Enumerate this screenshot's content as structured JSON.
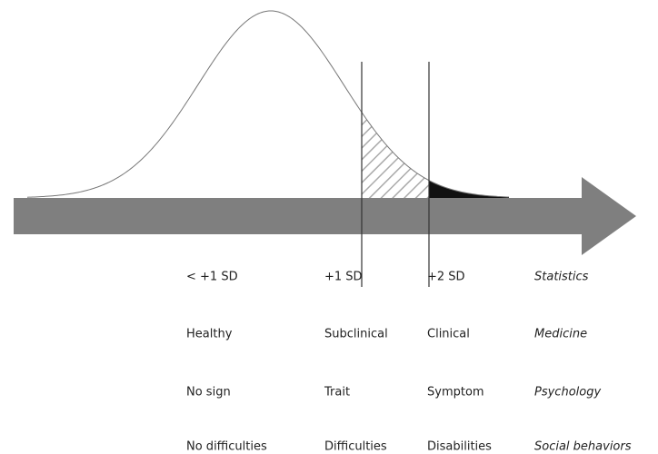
{
  "rows": [
    {
      "cells": [
        "< +1 SD",
        "+1 SD",
        "+2 SD"
      ],
      "domain": "Statistics"
    },
    {
      "cells": [
        "Healthy",
        "Subclinical",
        "Clinical"
      ],
      "domain": "Medicine"
    },
    {
      "cells": [
        "No sign",
        "Trait",
        "Symptom"
      ],
      "domain": "Psychology"
    },
    {
      "cells": [
        "No difficulties",
        "Difficulties",
        "Disabilities"
      ],
      "domain": "Social behaviors"
    }
  ]
}
